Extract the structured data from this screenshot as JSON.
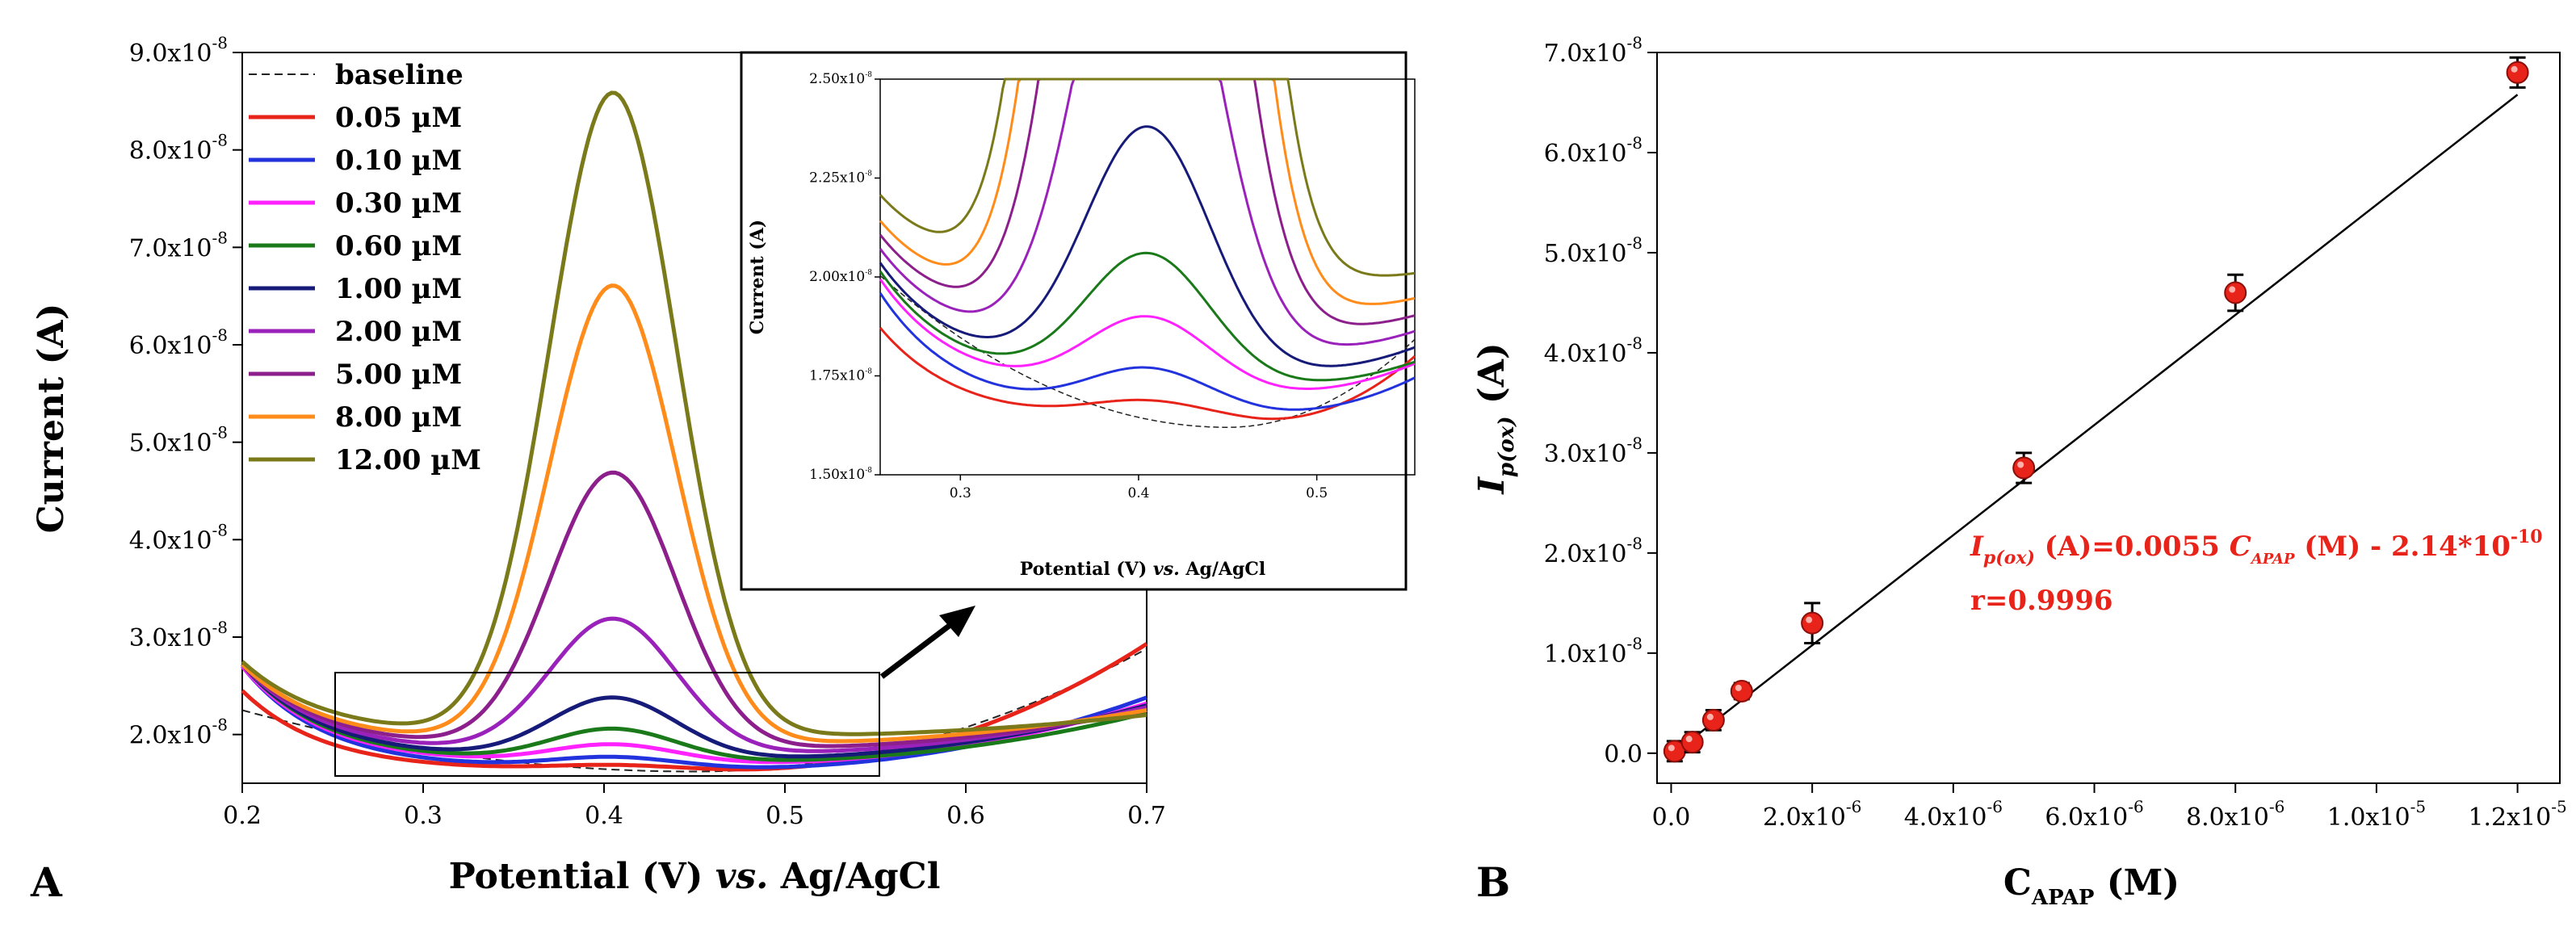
{
  "chart_data": [
    {
      "panel": "A",
      "type": "line",
      "xlabel": "Potential (V) vs. Ag/AgCl",
      "ylabel": "Current (A)",
      "xlim": [
        0.2,
        0.7
      ],
      "ylim": [
        1.5e-08,
        9e-08
      ],
      "x_ticks": [
        "0.2",
        "0.3",
        "0.4",
        "0.5",
        "0.6",
        "0.7"
      ],
      "y_ticks": [
        "2.0x10",
        "3.0x10",
        "4.0x10",
        "5.0x10",
        "6.0x10",
        "7.0x10",
        "8.0x10",
        "9.0x10"
      ],
      "y_tick_exponent": "-8",
      "series": [
        {
          "name": "baseline",
          "color": "#222222",
          "dashed": true,
          "peak": 0.0,
          "start": 2.25e-08,
          "dip": 1.62e-08,
          "end": 2.88e-08
        },
        {
          "name": "0.05 µM",
          "color": "#e8231a",
          "peak": 1.68e-08,
          "start": 2.45e-08,
          "dip": 1.63e-08,
          "end": 2.93e-08
        },
        {
          "name": "0.10 µM",
          "color": "#2233dd",
          "peak": 1.76e-08,
          "start": 2.7e-08,
          "dip": 1.65e-08,
          "end": 2.38e-08
        },
        {
          "name": "0.30 µM",
          "color": "#ff22ff",
          "peak": 1.89e-08,
          "start": 2.7e-08,
          "dip": 1.7e-08,
          "end": 2.32e-08
        },
        {
          "name": "0.60 µM",
          "color": "#1a7a1a",
          "peak": 2.05e-08,
          "start": 2.72e-08,
          "dip": 1.72e-08,
          "end": 2.22e-08
        },
        {
          "name": "1.00 µM",
          "color": "#161a78",
          "peak": 2.37e-08,
          "start": 2.72e-08,
          "dip": 1.75e-08,
          "end": 2.3e-08
        },
        {
          "name": "2.00 µM",
          "color": "#9a22bb",
          "peak": 3.18e-08,
          "start": 2.72e-08,
          "dip": 1.8e-08,
          "end": 2.28e-08
        },
        {
          "name": "5.00 µM",
          "color": "#8c1f8c",
          "peak": 4.68e-08,
          "start": 2.72e-08,
          "dip": 1.85e-08,
          "end": 2.25e-08
        },
        {
          "name": "8.00 µM",
          "color": "#ff8c1a",
          "peak": 6.6e-08,
          "start": 2.72e-08,
          "dip": 1.9e-08,
          "end": 2.25e-08
        },
        {
          "name": "12.00 µM",
          "color": "#7a7a1a",
          "peak": 8.58e-08,
          "start": 2.75e-08,
          "dip": 1.98e-08,
          "end": 2.2e-08
        }
      ],
      "legend_location": "top-left"
    },
    {
      "panel": "A-inset",
      "type": "line",
      "xlabel": "Potential (V) vs. Ag/AgCl",
      "ylabel": "Current (A)",
      "xlim": [
        0.255,
        0.555
      ],
      "ylim": [
        1.5e-08,
        2.5e-08
      ],
      "x_ticks": [
        "0.3",
        "0.4",
        "0.5"
      ],
      "y_ticks": [
        "1.50x10",
        "1.75x10",
        "2.00x10",
        "2.25x10",
        "2.50x10"
      ],
      "y_tick_exponent": "-8"
    },
    {
      "panel": "B",
      "type": "scatter",
      "xlabel": "C",
      "xlabel_sub": "APAP",
      "xlabel_unit": " (M)",
      "ylabel": "I",
      "ylabel_sub": "p(ox)",
      "ylabel_unit": " (A)",
      "xlim": [
        -2e-07,
        1.26e-05
      ],
      "ylim": [
        -3e-09,
        7e-08
      ],
      "x_ticks": [
        "0.0",
        "2.0x10",
        "4.0x10",
        "6.0x10",
        "8.0x10",
        "1.0x10",
        "1.2x10"
      ],
      "x_tick_exponents": [
        "",
        "-6",
        "-6",
        "-6",
        "-6",
        "-5",
        "-5"
      ],
      "y_ticks": [
        "0.0",
        "1.0x10",
        "2.0x10",
        "3.0x10",
        "4.0x10",
        "5.0x10",
        "6.0x10",
        "7.0x10"
      ],
      "y_tick_exponent": "-8",
      "points": [
        {
          "x": 5e-08,
          "y": 2e-10,
          "err": 1e-09
        },
        {
          "x": 3e-07,
          "y": 1.1e-09,
          "err": 1e-09
        },
        {
          "x": 6e-07,
          "y": 3.3e-09,
          "err": 1e-09
        },
        {
          "x": 1e-06,
          "y": 6.2e-09,
          "err": 8e-10
        },
        {
          "x": 2e-06,
          "y": 1.3e-08,
          "err": 2e-09
        },
        {
          "x": 5e-06,
          "y": 2.85e-08,
          "err": 1.5e-09
        },
        {
          "x": 8e-06,
          "y": 4.6e-08,
          "err": 1.8e-09
        },
        {
          "x": 1.2e-05,
          "y": 6.8e-08,
          "err": 1.5e-09
        }
      ],
      "fit": {
        "slope": 0.0055,
        "intercept": -2.14e-10
      },
      "equation": {
        "lhs": "I",
        "lhs_sub": "p(ox)",
        "mid": " (A)=0.0055 ",
        "c": "C",
        "c_sub": "APAP",
        "rhs": " (M) - 2.14*10",
        "rhs_sup": "-10",
        "r": "r=0.9996"
      },
      "marker_color": "#e8231a"
    }
  ],
  "panel_labels": {
    "a": "A",
    "b": "B"
  }
}
